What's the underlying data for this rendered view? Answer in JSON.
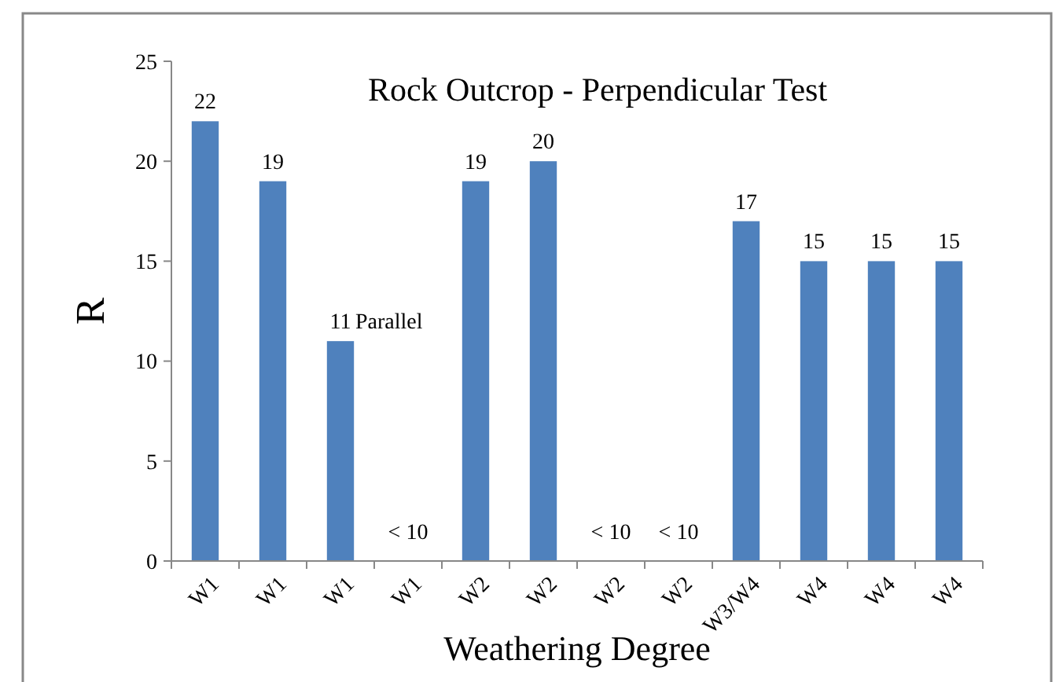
{
  "chart_data": {
    "type": "bar",
    "title": "Rock Outcrop - Perpendicular Test",
    "xlabel": "Weathering Degree",
    "ylabel": "R",
    "categories": [
      "W1",
      "W1",
      "W1",
      "W1",
      "W2",
      "W2",
      "W2",
      "W2",
      "W3/W4",
      "W4",
      "W4",
      "W4"
    ],
    "values": [
      22,
      19,
      11,
      null,
      19,
      20,
      null,
      null,
      17,
      15,
      15,
      15
    ],
    "value_labels": [
      "22",
      "19",
      "11",
      "< 10",
      "19",
      "20",
      "< 10",
      "< 10",
      "17",
      "15",
      "15",
      "15"
    ],
    "color": "#4f81bd",
    "ylim": [
      0,
      25
    ],
    "yticks": [
      0,
      5,
      10,
      15,
      20,
      25
    ],
    "grid": false,
    "annotations": [
      "Parallel"
    ]
  }
}
